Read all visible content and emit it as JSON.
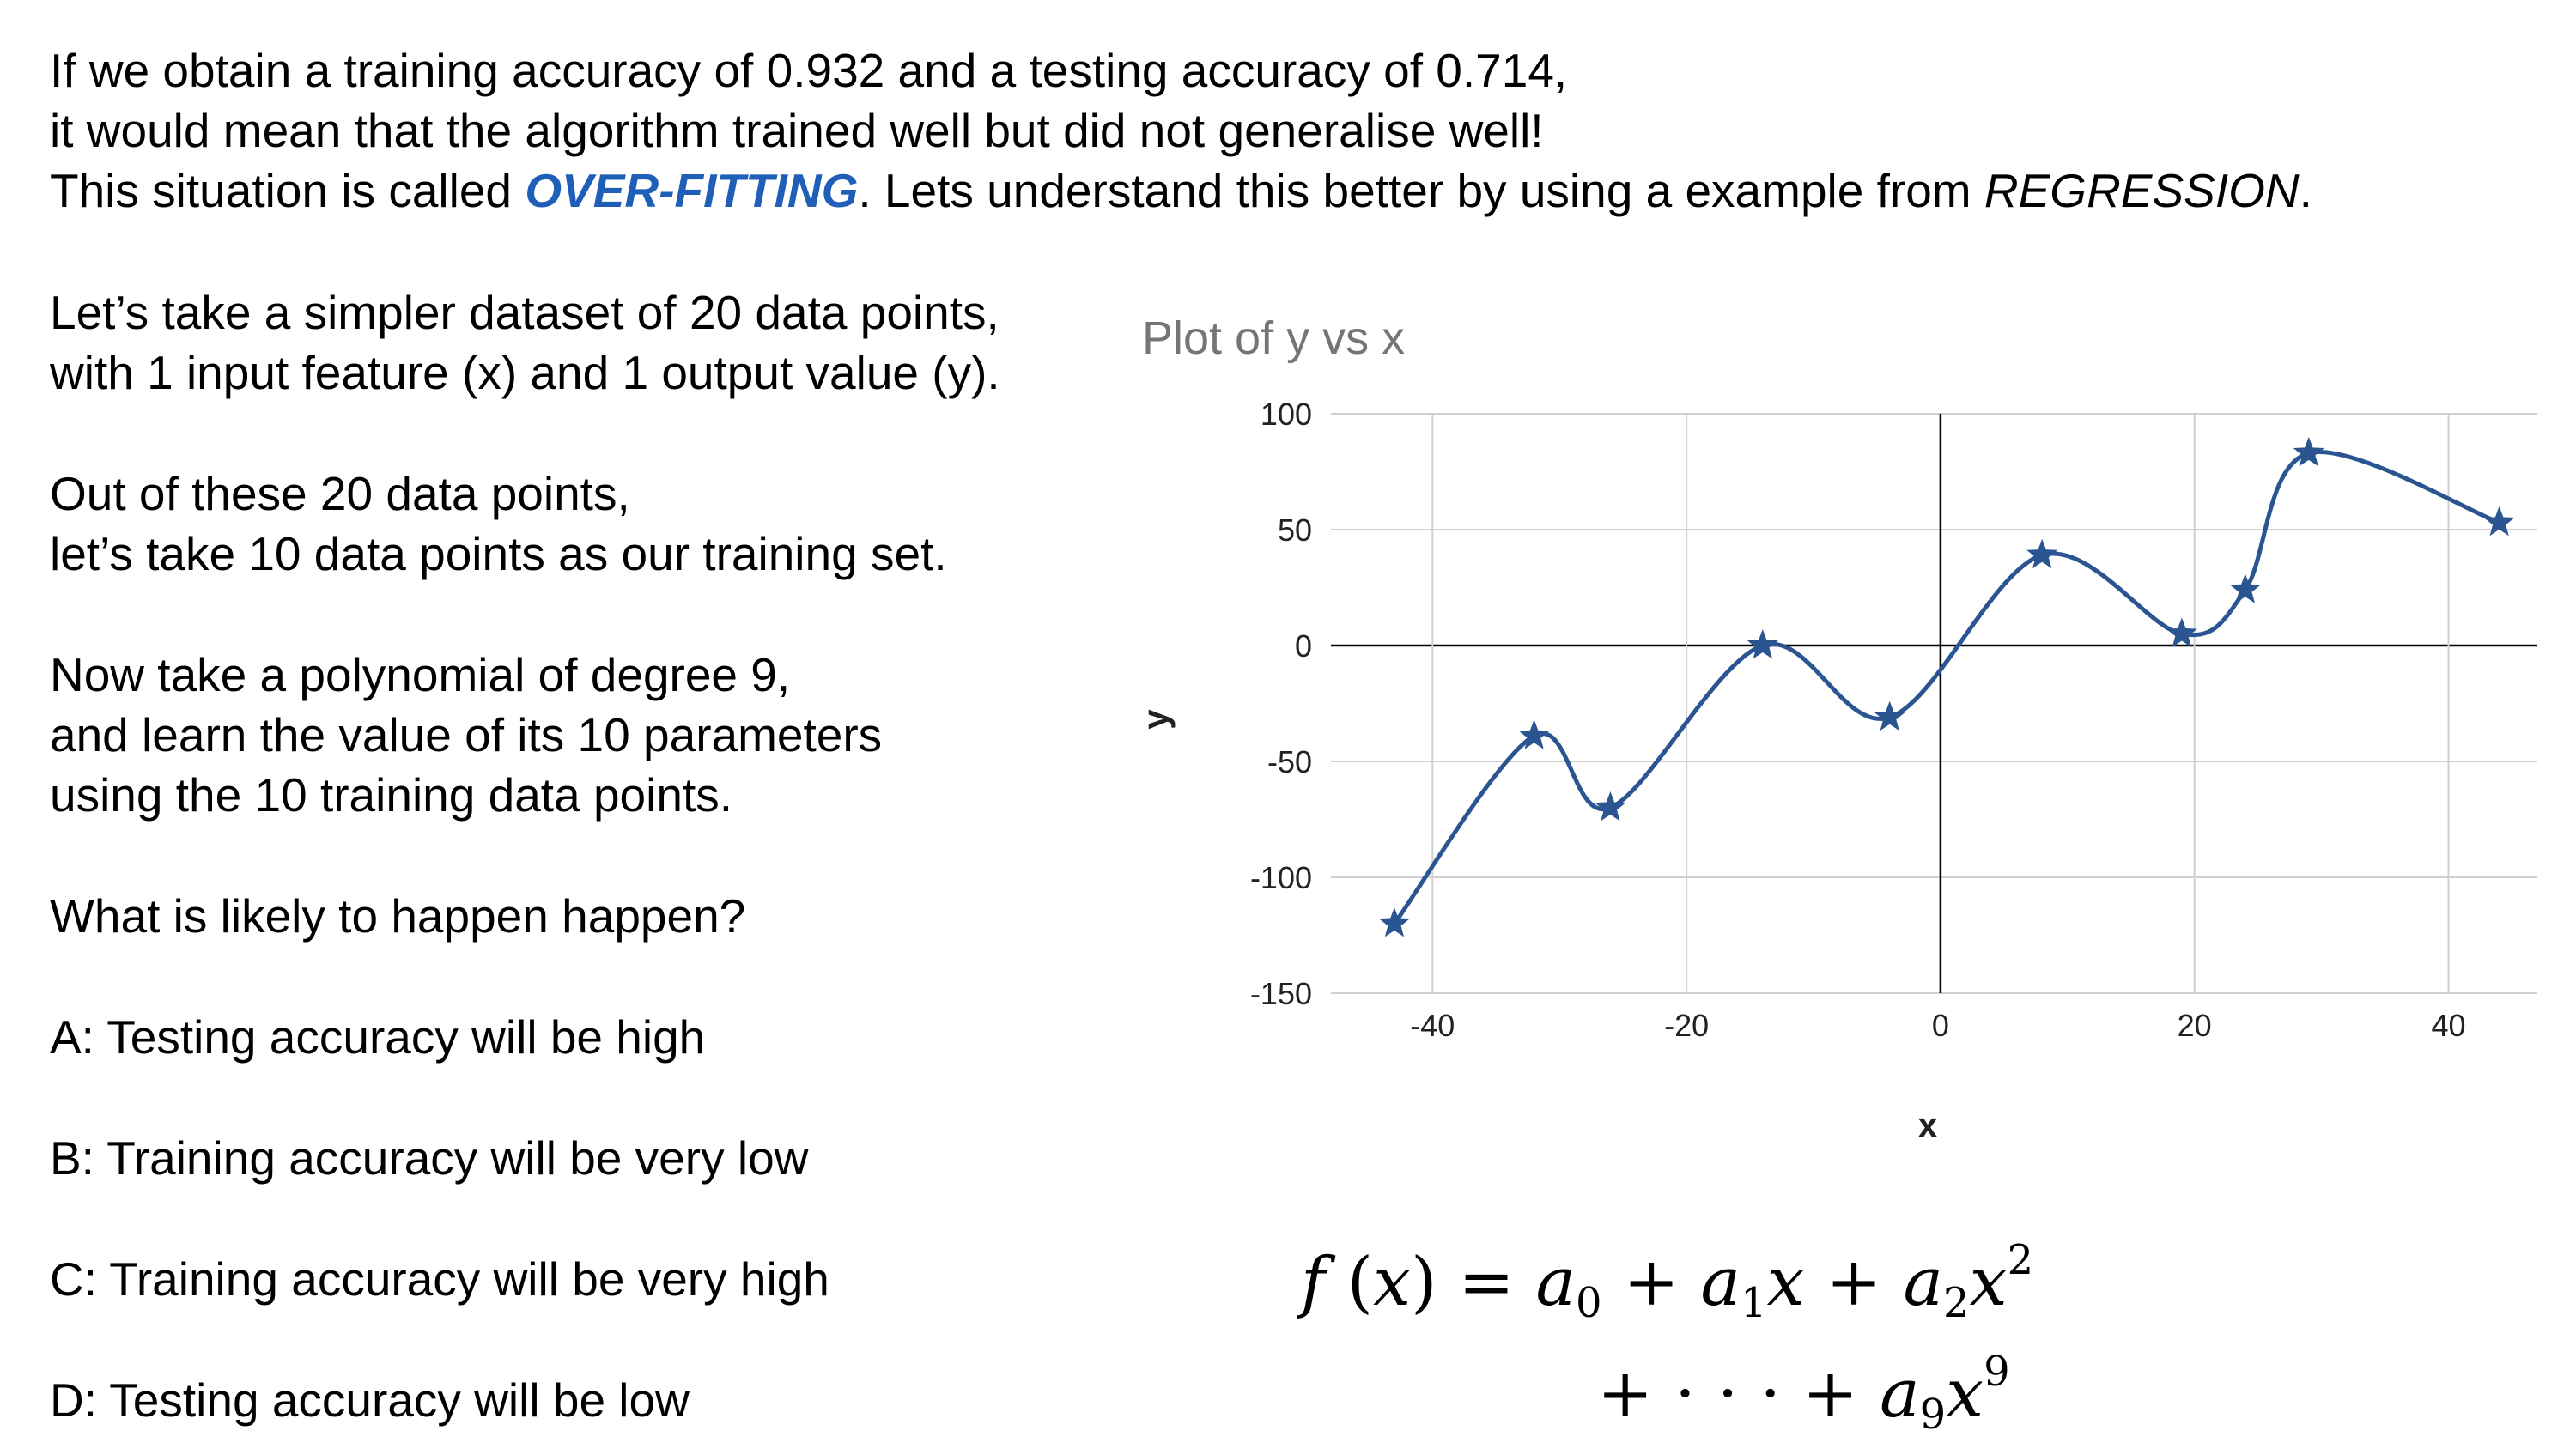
{
  "intro": {
    "line1": "If we obtain a training accuracy of 0.932 and a testing accuracy of 0.714,",
    "line2": "it would mean that the algorithm trained well but did not generalise well!",
    "line3_pre": "This situation is called ",
    "line3_term": "OVER-FITTING",
    "line3_mid": ". Lets understand this better by using a example from ",
    "line3_topic": "REGRESSION",
    "line3_end": "."
  },
  "body": {
    "p1_l1": "Let’s take a simpler dataset of 20 data points,",
    "p1_l2": "with 1 input feature (x) and 1 output value (y).",
    "p2_l1": "Out of these 20 data points,",
    "p2_l2": "let’s take 10 data points as our training set.",
    "p3_l1": "Now take a polynomial of degree 9,",
    "p3_l2": "and learn the value of its 10 parameters",
    "p3_l3": "using the 10 training data points.",
    "question": "What is likely to happen happen?"
  },
  "options": [
    "A: Testing accuracy will be high",
    "B: Training accuracy will be very low",
    "C: Training accuracy will be very high",
    "D: Testing accuracy will be low"
  ],
  "colors": {
    "accent": "#1f5fb8",
    "series": "#2b5590",
    "grid": "#d0d0d0",
    "axis": "#000000"
  },
  "chart_data": {
    "type": "scatter",
    "title": "Plot of y vs x",
    "xlabel": "x",
    "ylabel": "y",
    "xlim": [
      -48,
      47
    ],
    "ylim": [
      -150,
      100
    ],
    "x_ticks": [
      -40,
      -20,
      0,
      20,
      40
    ],
    "y_ticks": [
      100,
      50,
      0,
      -50,
      -100,
      -150
    ],
    "grid": true,
    "legend": "none",
    "marker": "star-icon",
    "series": [
      {
        "x": [
          -43,
          -32,
          -26,
          -14,
          -4,
          8,
          19,
          24,
          29,
          44
        ],
        "y": [
          -120,
          -39,
          -70,
          0,
          -31,
          39,
          5,
          24,
          83,
          53
        ]
      }
    ]
  },
  "formula": {
    "line1": {
      "f": "f",
      "open": " (",
      "x": "x",
      "close": ")",
      "eq": " = ",
      "a0": "a",
      "s0": "0",
      "plus1": " + ",
      "a1": "a",
      "s1": "1",
      "x1": "x",
      "plus2": " + ",
      "a2": "a",
      "s2": "2",
      "x2": "x",
      "p2": "2"
    },
    "line2": {
      "plus3": "+ ",
      "dots": "· · ·",
      "plus4": " + ",
      "a9": "a",
      "s9": "9",
      "x9": "x",
      "p9": "9"
    }
  }
}
